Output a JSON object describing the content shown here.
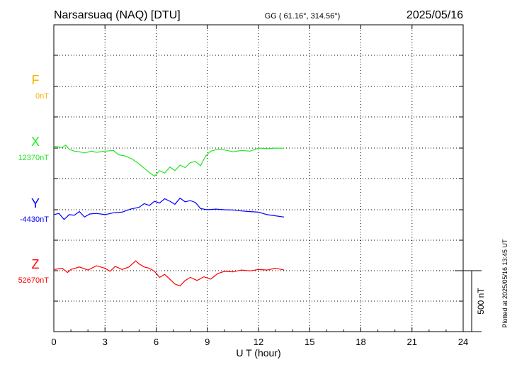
{
  "header": {
    "station": "Narsarsuaq (NAQ)  [DTU]",
    "coords": "GG ( 61.16°, 314.56°)",
    "date": "2025/05/16"
  },
  "footer": {
    "plotted": "Plotted at 2025/05/16 13:45 UT"
  },
  "colors": {
    "F": "#f5b400",
    "X": "#22e622",
    "Y": "#0000ff",
    "Z": "#ff0000",
    "axis": "#000000"
  },
  "chart_data": {
    "type": "line",
    "xlabel": "U T (hour)",
    "xlim": [
      0,
      24
    ],
    "xticks": [
      0,
      3,
      6,
      9,
      12,
      15,
      18,
      21,
      24
    ],
    "grid": true,
    "scale_bar": {
      "value_nT": 500,
      "label": "500 nT"
    },
    "series": [
      {
        "name": "F",
        "baseline_label": "0nT",
        "baseline": 0,
        "x": [],
        "values": []
      },
      {
        "name": "X",
        "baseline_label": "12370nT",
        "baseline": 12370,
        "x": [
          0,
          0.5,
          0.7,
          0.9,
          1.2,
          1.5,
          1.8,
          2.2,
          2.5,
          3.0,
          3.5,
          3.8,
          4.2,
          4.6,
          5.0,
          5.3,
          5.6,
          5.9,
          6.2,
          6.5,
          6.8,
          7.1,
          7.4,
          7.7,
          8.0,
          8.3,
          8.6,
          8.9,
          9.2,
          9.6,
          10.0,
          10.5,
          11.0,
          11.5,
          12.0,
          12.5,
          13.0,
          13.5
        ],
        "values": [
          12385,
          12375,
          12395,
          12360,
          12345,
          12340,
          12330,
          12345,
          12335,
          12345,
          12350,
          12315,
          12305,
          12280,
          12240,
          12205,
          12170,
          12140,
          12185,
          12165,
          12215,
          12185,
          12230,
          12210,
          12250,
          12260,
          12225,
          12305,
          12345,
          12360,
          12355,
          12340,
          12350,
          12345,
          12370,
          12365,
          12370,
          12368
        ]
      },
      {
        "name": "Y",
        "baseline_label": "-4430nT",
        "baseline": -4430,
        "x": [
          0,
          0.3,
          0.6,
          0.9,
          1.2,
          1.5,
          1.8,
          2.1,
          2.5,
          3.0,
          3.5,
          4.0,
          4.5,
          5.0,
          5.3,
          5.6,
          5.9,
          6.2,
          6.5,
          6.8,
          7.1,
          7.4,
          7.7,
          8.0,
          8.3,
          8.6,
          9.0,
          9.5,
          10.0,
          10.5,
          11.0,
          11.5,
          12.0,
          12.5,
          13.0,
          13.5
        ],
        "values": [
          -4470,
          -4460,
          -4510,
          -4470,
          -4475,
          -4445,
          -4490,
          -4465,
          -4460,
          -4470,
          -4455,
          -4450,
          -4425,
          -4410,
          -4380,
          -4395,
          -4360,
          -4375,
          -4340,
          -4360,
          -4385,
          -4335,
          -4365,
          -4355,
          -4370,
          -4420,
          -4430,
          -4425,
          -4430,
          -4432,
          -4440,
          -4445,
          -4450,
          -4470,
          -4480,
          -4490
        ]
      },
      {
        "name": "Z",
        "baseline_label": "52670nT",
        "baseline": 52670,
        "x": [
          0,
          0.5,
          0.8,
          1.0,
          1.5,
          2.0,
          2.5,
          3.0,
          3.3,
          3.6,
          4.0,
          4.4,
          4.8,
          5.0,
          5.3,
          5.6,
          5.9,
          6.2,
          6.5,
          6.8,
          7.1,
          7.4,
          7.7,
          8.0,
          8.4,
          8.8,
          9.2,
          9.6,
          10.0,
          10.5,
          11.0,
          11.5,
          12.0,
          12.5,
          13.0,
          13.5
        ],
        "values": [
          52680,
          52690,
          52655,
          52680,
          52700,
          52675,
          52710,
          52690,
          52665,
          52705,
          52680,
          52700,
          52750,
          52725,
          52700,
          52690,
          52665,
          52615,
          52640,
          52600,
          52560,
          52545,
          52590,
          52615,
          52590,
          52620,
          52600,
          52645,
          52665,
          52660,
          52675,
          52668,
          52680,
          52675,
          52690,
          52675
        ]
      }
    ]
  }
}
